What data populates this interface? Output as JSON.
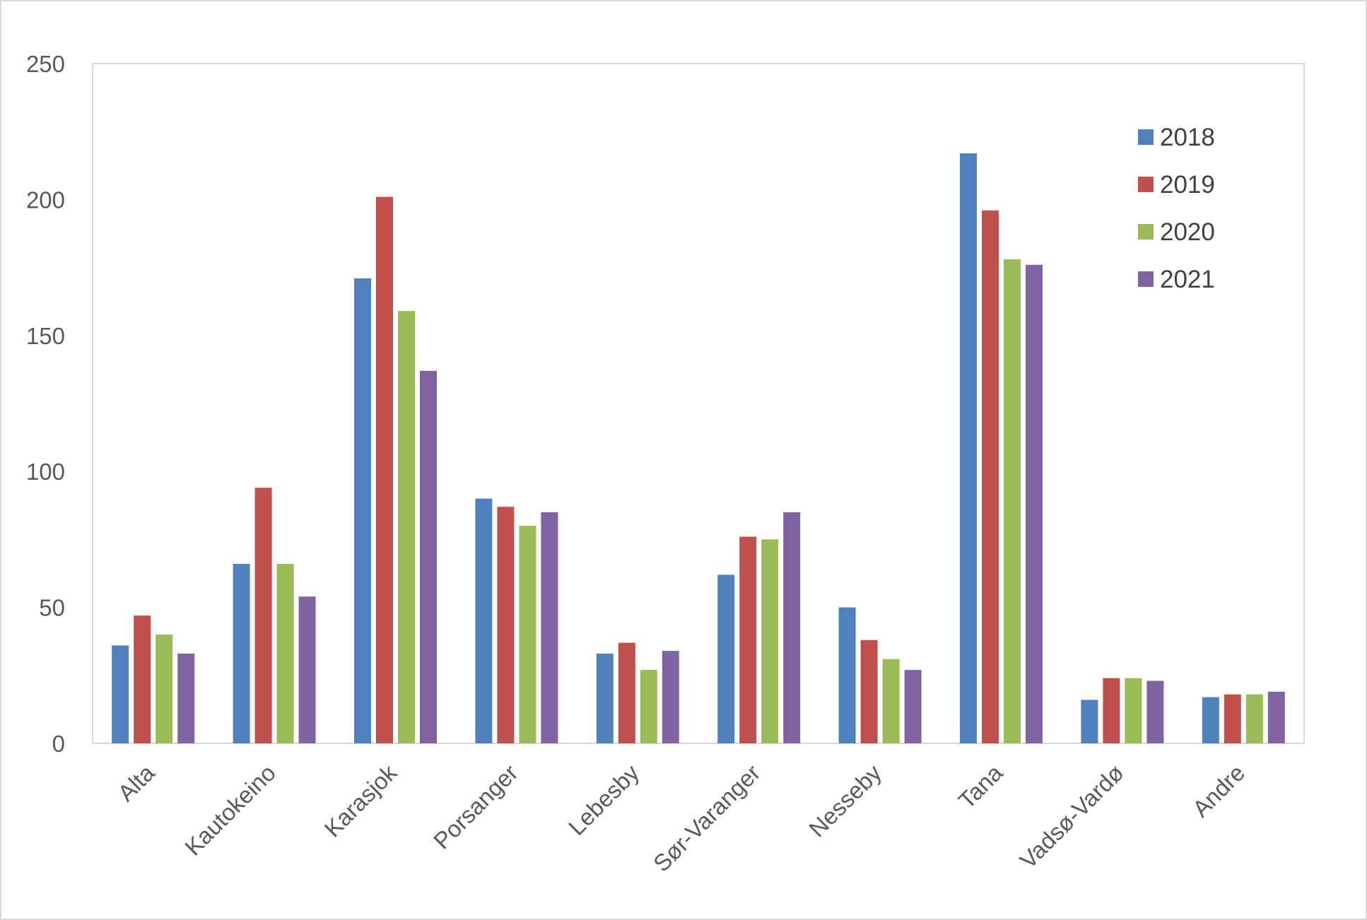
{
  "chart_data": {
    "type": "bar",
    "categories": [
      "Alta",
      "Kautokeino",
      "Karasjok",
      "Porsanger",
      "Lebesby",
      "Sør-Varanger",
      "Nesseby",
      "Tana",
      "Vadsø-Vardø",
      "Andre"
    ],
    "series": [
      {
        "name": "2018",
        "color": "#4f81bd",
        "values": [
          36,
          66,
          171,
          90,
          33,
          62,
          50,
          217,
          16,
          17
        ]
      },
      {
        "name": "2019",
        "color": "#c0504d",
        "values": [
          47,
          94,
          201,
          87,
          37,
          76,
          38,
          196,
          24,
          18
        ]
      },
      {
        "name": "2020",
        "color": "#9bbb59",
        "values": [
          40,
          66,
          159,
          80,
          27,
          75,
          31,
          178,
          24,
          18
        ]
      },
      {
        "name": "2021",
        "color": "#8064a2",
        "values": [
          33,
          54,
          137,
          85,
          34,
          85,
          27,
          176,
          23,
          19
        ]
      }
    ],
    "title": "",
    "xlabel": "",
    "ylabel": "",
    "ylim": [
      0,
      250
    ],
    "yticks": [
      "0",
      "50",
      "100",
      "150",
      "200",
      "250"
    ],
    "grid": false,
    "legend_position": "top-right"
  }
}
